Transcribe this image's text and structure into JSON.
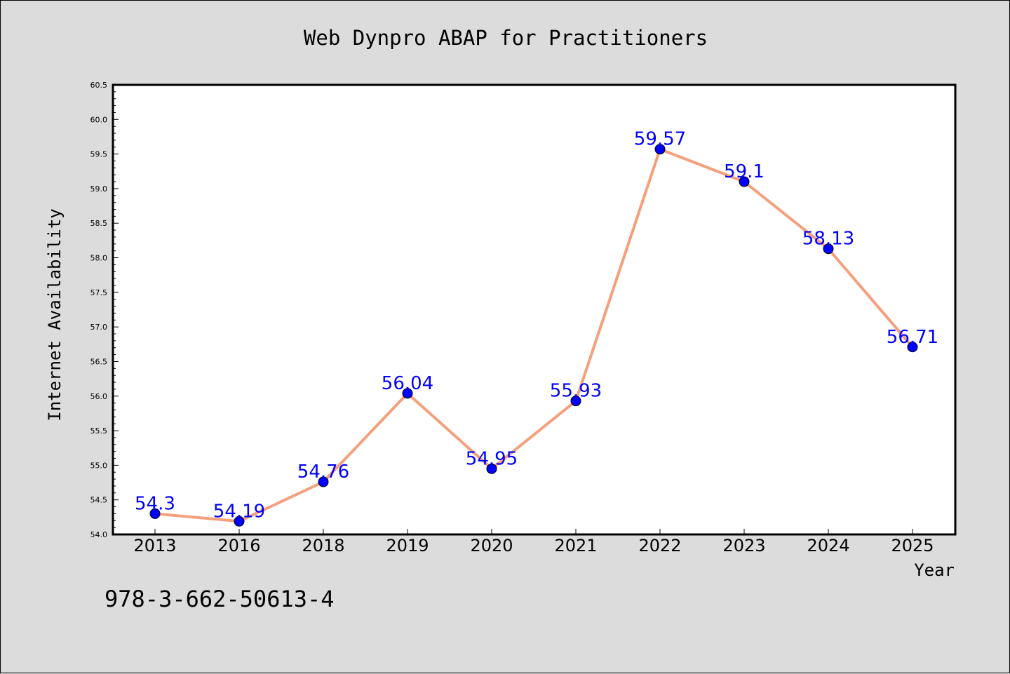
{
  "chart_data": {
    "type": "line",
    "title": "Web Dynpro ABAP for Practitioners",
    "xlabel": "Year",
    "ylabel": "Internet Availability",
    "categories": [
      "2013",
      "2016",
      "2018",
      "2019",
      "2020",
      "2021",
      "2022",
      "2023",
      "2024",
      "2025"
    ],
    "series": [
      {
        "values": [
          54.3,
          54.19,
          54.76,
          56.04,
          54.95,
          55.93,
          59.57,
          59.1,
          58.13,
          56.71
        ],
        "line_color": "#f4a07c",
        "marker_color": "#0000ff"
      }
    ],
    "ylim": [
      54.0,
      60.5
    ],
    "yticks": [
      "54.0",
      "54.5",
      "55.0",
      "55.5",
      "56.0",
      "56.5",
      "57.0",
      "57.5",
      "58.0",
      "58.5",
      "59.0",
      "59.5",
      "60.0",
      "60.5"
    ],
    "data_label_color": "#0000ff",
    "grid": false,
    "legend": "none"
  },
  "footer": {
    "isbn": "978-3-662-50613-4"
  }
}
